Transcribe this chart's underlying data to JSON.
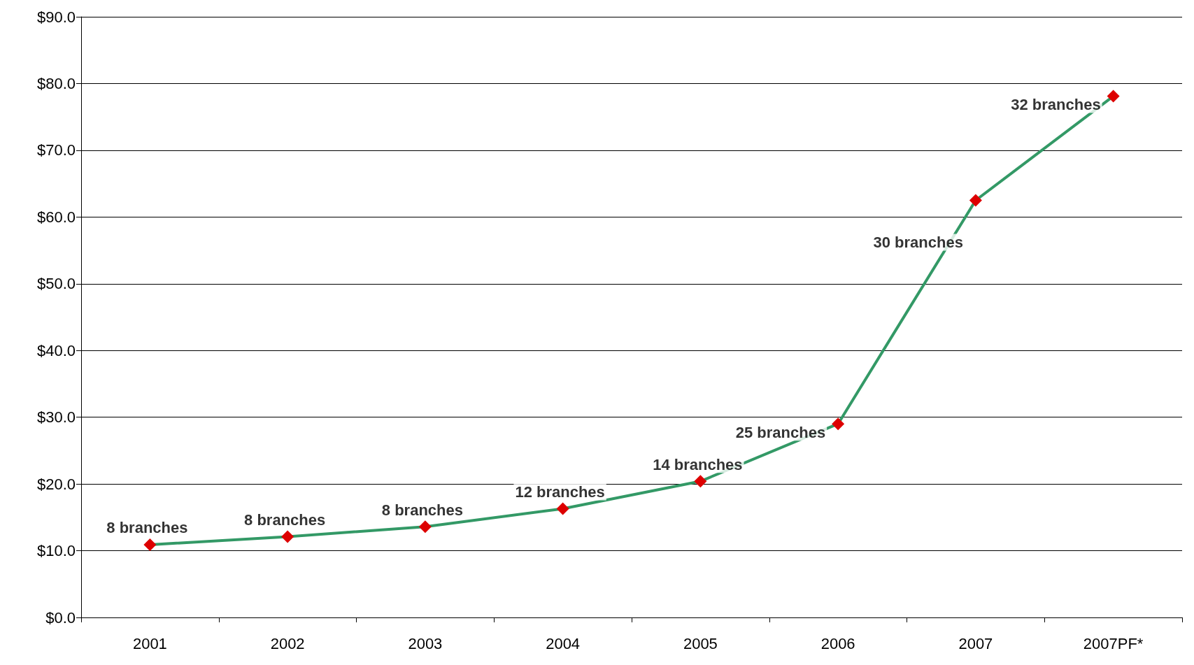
{
  "chart_data": {
    "type": "line",
    "categories": [
      "2001",
      "2002",
      "2003",
      "2004",
      "2005",
      "2006",
      "2007",
      "2007PF*"
    ],
    "series": [
      {
        "color": "#339966",
        "colors": [
          "#dd0000",
          "#dd0000",
          "#dd0000",
          "#dd0000",
          "#dd0000",
          "#dd0000",
          "#dd0000",
          "#dd0000"
        ],
        "values": [
          10.9,
          12.1,
          13.6,
          16.3,
          20.4,
          29.0,
          62.5,
          78.1
        ]
      }
    ],
    "marker": "diamond",
    "line_style": "solid",
    "ylim": [
      0,
      90
    ],
    "yticks": [
      {
        "value": 0,
        "label": "$0.0"
      },
      {
        "value": 10,
        "label": "$10.0"
      },
      {
        "value": 20,
        "label": "$20.0"
      },
      {
        "value": 30,
        "label": "$30.0"
      },
      {
        "value": 40,
        "label": "$40.0"
      },
      {
        "value": 50,
        "label": "$50.0"
      },
      {
        "value": 60,
        "label": "$60.0"
      },
      {
        "value": 70,
        "label": "$70.0"
      },
      {
        "value": 80,
        "label": "$80.0"
      },
      {
        "value": 90,
        "label": "$90.0"
      }
    ],
    "grid": "y",
    "annotations": [
      {
        "text": "8 branches",
        "x": "2001",
        "y": 10.9
      },
      {
        "text": "8 branches",
        "x": "2002",
        "y": 12.1
      },
      {
        "text": "8 branches",
        "x": "2003",
        "y": 13.6
      },
      {
        "text": "12 branches",
        "x": "2004",
        "y": 16.3
      },
      {
        "text": "14 branches",
        "x": "2005",
        "y": 20.4
      },
      {
        "text": "25 branches",
        "x": "2006",
        "y": 29.0
      },
      {
        "text": "30 branches",
        "x": "2007",
        "y": 62.5
      },
      {
        "text": "32 branches",
        "x": "2007PF*",
        "y": 78.1
      }
    ]
  }
}
